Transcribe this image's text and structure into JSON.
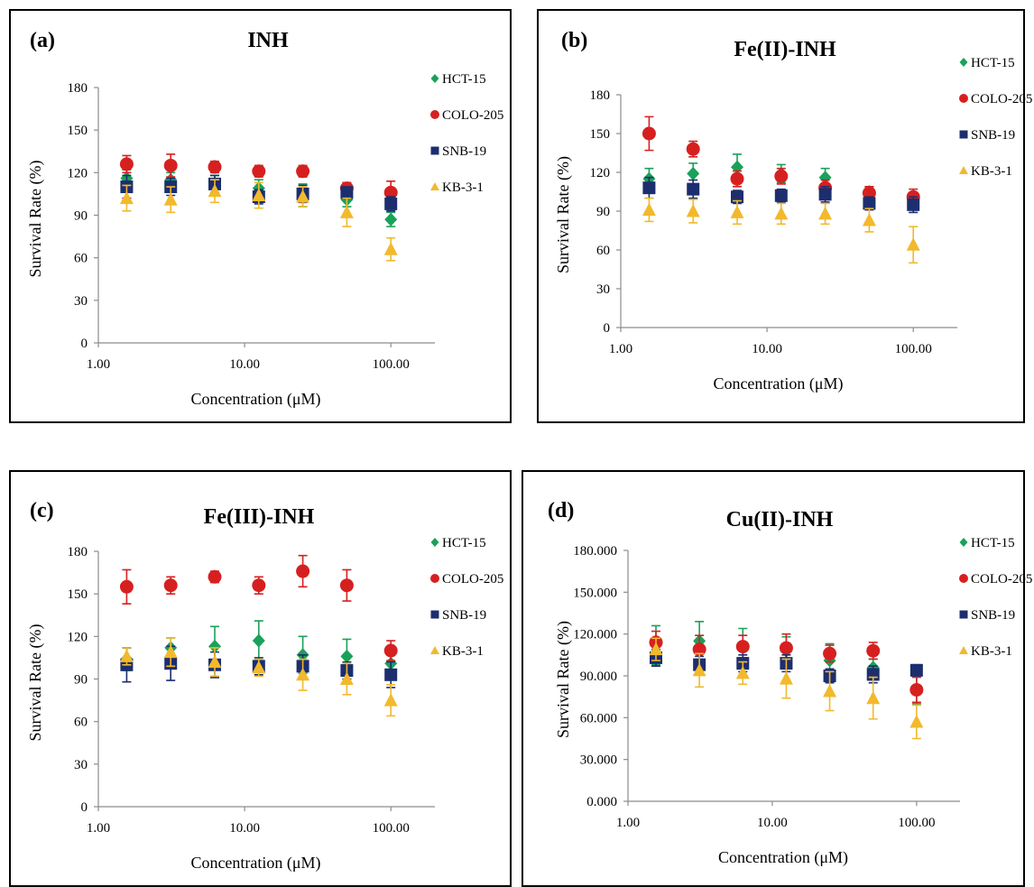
{
  "legend_entries": [
    "HCT-15",
    "COLO-205",
    "SNB-19",
    "KB-3-1"
  ],
  "colors": {
    "HCT-15": "#1aa15a",
    "COLO-205": "#d62020",
    "SNB-19": "#1c2e6e",
    "KB-3-1": "#f2b92c"
  },
  "markers": {
    "HCT-15": "diamond",
    "COLO-205": "circle",
    "SNB-19": "square",
    "KB-3-1": "triangle"
  },
  "chart_data": [
    {
      "type": "scatter",
      "panel": "(a)",
      "title": "INH",
      "xlabel": "Concentration  (μM)",
      "ylabel": "Survival Rate (%)",
      "x_scale": "log",
      "xlim": [
        1,
        200
      ],
      "ylim": [
        0,
        180
      ],
      "x_ticks": [
        "1.00",
        "10.00",
        "100.00"
      ],
      "y_ticks": [
        "0",
        "30",
        "60",
        "90",
        "120",
        "150",
        "180"
      ],
      "grid": false,
      "legend_position": "right",
      "x": [
        1.5625,
        3.125,
        6.25,
        12.5,
        25,
        50,
        100
      ],
      "series": [
        {
          "name": "HCT-15",
          "values": [
            116,
            115,
            112,
            109,
            104,
            101,
            87
          ],
          "errors": [
            6,
            5,
            6,
            6,
            8,
            5,
            5
          ]
        },
        {
          "name": "COLO-205",
          "values": [
            126,
            125,
            124,
            121,
            121,
            109,
            106
          ],
          "errors": [
            6,
            8,
            4,
            4,
            4,
            4,
            8
          ]
        },
        {
          "name": "SNB-19",
          "values": [
            110,
            110,
            112,
            103,
            105,
            106,
            98
          ],
          "errors": [
            8,
            6,
            6,
            5,
            6,
            4,
            5
          ]
        },
        {
          "name": "KB-3-1",
          "values": [
            102,
            101,
            107,
            104,
            103,
            92,
            66
          ],
          "errors": [
            9,
            9,
            8,
            9,
            7,
            10,
            8
          ]
        }
      ]
    },
    {
      "type": "scatter",
      "panel": "(b)",
      "title": "Fe(II)-INH",
      "xlabel": "Concentration (μM)",
      "ylabel": "Survival Rate (%)",
      "x_scale": "log",
      "xlim": [
        1,
        200
      ],
      "ylim": [
        0,
        180
      ],
      "x_ticks": [
        "1.00",
        "10.00",
        "100.00"
      ],
      "y_ticks": [
        "0",
        "30",
        "60",
        "90",
        "120",
        "150",
        "180"
      ],
      "grid": false,
      "legend_position": "right",
      "x": [
        1.5625,
        3.125,
        6.25,
        12.5,
        25,
        50,
        100
      ],
      "series": [
        {
          "name": "HCT-15",
          "values": [
            115,
            119,
            124,
            119,
            116,
            105,
            99
          ],
          "errors": [
            8,
            8,
            10,
            7,
            7,
            4,
            5
          ]
        },
        {
          "name": "COLO-205",
          "values": [
            150,
            138,
            115,
            117,
            108,
            104,
            101
          ],
          "errors": [
            13,
            6,
            6,
            6,
            6,
            5,
            6
          ]
        },
        {
          "name": "SNB-19",
          "values": [
            108,
            107,
            101,
            102,
            103,
            96,
            95
          ],
          "errors": [
            8,
            7,
            5,
            5,
            6,
            5,
            6
          ]
        },
        {
          "name": "KB-3-1",
          "values": [
            91,
            90,
            89,
            88,
            88,
            83,
            64
          ],
          "errors": [
            9,
            9,
            9,
            8,
            8,
            9,
            14
          ]
        }
      ]
    },
    {
      "type": "scatter",
      "panel": "(c)",
      "title": "Fe(III)-INH",
      "xlabel": "Concentration (μM)",
      "ylabel": "Survival Rate (%)",
      "x_scale": "log",
      "xlim": [
        1,
        200
      ],
      "ylim": [
        0,
        180
      ],
      "x_ticks": [
        "1.00",
        "10.00",
        "100.00"
      ],
      "y_ticks": [
        "0",
        "30",
        "60",
        "90",
        "120",
        "150",
        "180"
      ],
      "grid": false,
      "legend_position": "right",
      "x": [
        1.5625,
        3.125,
        6.25,
        12.5,
        25,
        50,
        100
      ],
      "series": [
        {
          "name": "HCT-15",
          "values": [
            104,
            112,
            113,
            117,
            107,
            106,
            101
          ],
          "errors": [
            8,
            7,
            14,
            14,
            13,
            12,
            8
          ]
        },
        {
          "name": "COLO-205",
          "values": [
            155,
            156,
            162,
            156,
            166,
            156,
            110
          ],
          "errors": [
            12,
            6,
            4,
            6,
            11,
            11,
            7
          ]
        },
        {
          "name": "SNB-19",
          "values": [
            100,
            101,
            100,
            99,
            99,
            96,
            93
          ],
          "errors": [
            12,
            12,
            9,
            6,
            8,
            6,
            9
          ]
        },
        {
          "name": "KB-3-1",
          "values": [
            106,
            109,
            102,
            98,
            93,
            90,
            75
          ],
          "errors": [
            6,
            10,
            10,
            6,
            11,
            11,
            11
          ]
        }
      ]
    },
    {
      "type": "scatter",
      "panel": "(d)",
      "title": "Cu(II)-INH",
      "xlabel": "Concentration (μM)",
      "ylabel": "Survival Rate (%)",
      "x_scale": "log",
      "xlim": [
        1,
        200
      ],
      "ylim": [
        0,
        180
      ],
      "x_ticks": [
        "1.00",
        "10.00",
        "100.00"
      ],
      "y_ticks": [
        "0.000",
        "30.000",
        "60.000",
        "90.000",
        "120.000",
        "150.000",
        "180.000"
      ],
      "grid": false,
      "legend_position": "right",
      "x": [
        1.5625,
        3.125,
        6.25,
        12.5,
        25,
        50,
        100
      ],
      "series": [
        {
          "name": "HCT-15",
          "values": [
            112,
            115,
            110,
            108,
            101,
            96,
            80
          ],
          "errors": [
            14,
            14,
            14,
            10,
            12,
            6,
            10
          ]
        },
        {
          "name": "COLO-205",
          "values": [
            114,
            109,
            111,
            110,
            106,
            108,
            80
          ],
          "errors": [
            8,
            10,
            8,
            10,
            6,
            6,
            9
          ]
        },
        {
          "name": "SNB-19",
          "values": [
            103,
            98,
            99,
            99,
            90,
            91,
            94
          ],
          "errors": [
            6,
            6,
            6,
            6,
            5,
            6,
            4
          ]
        },
        {
          "name": "KB-3-1",
          "values": [
            109,
            94,
            92,
            88,
            79,
            74,
            57
          ],
          "errors": [
            8,
            12,
            8,
            14,
            14,
            15,
            12
          ]
        }
      ]
    }
  ]
}
